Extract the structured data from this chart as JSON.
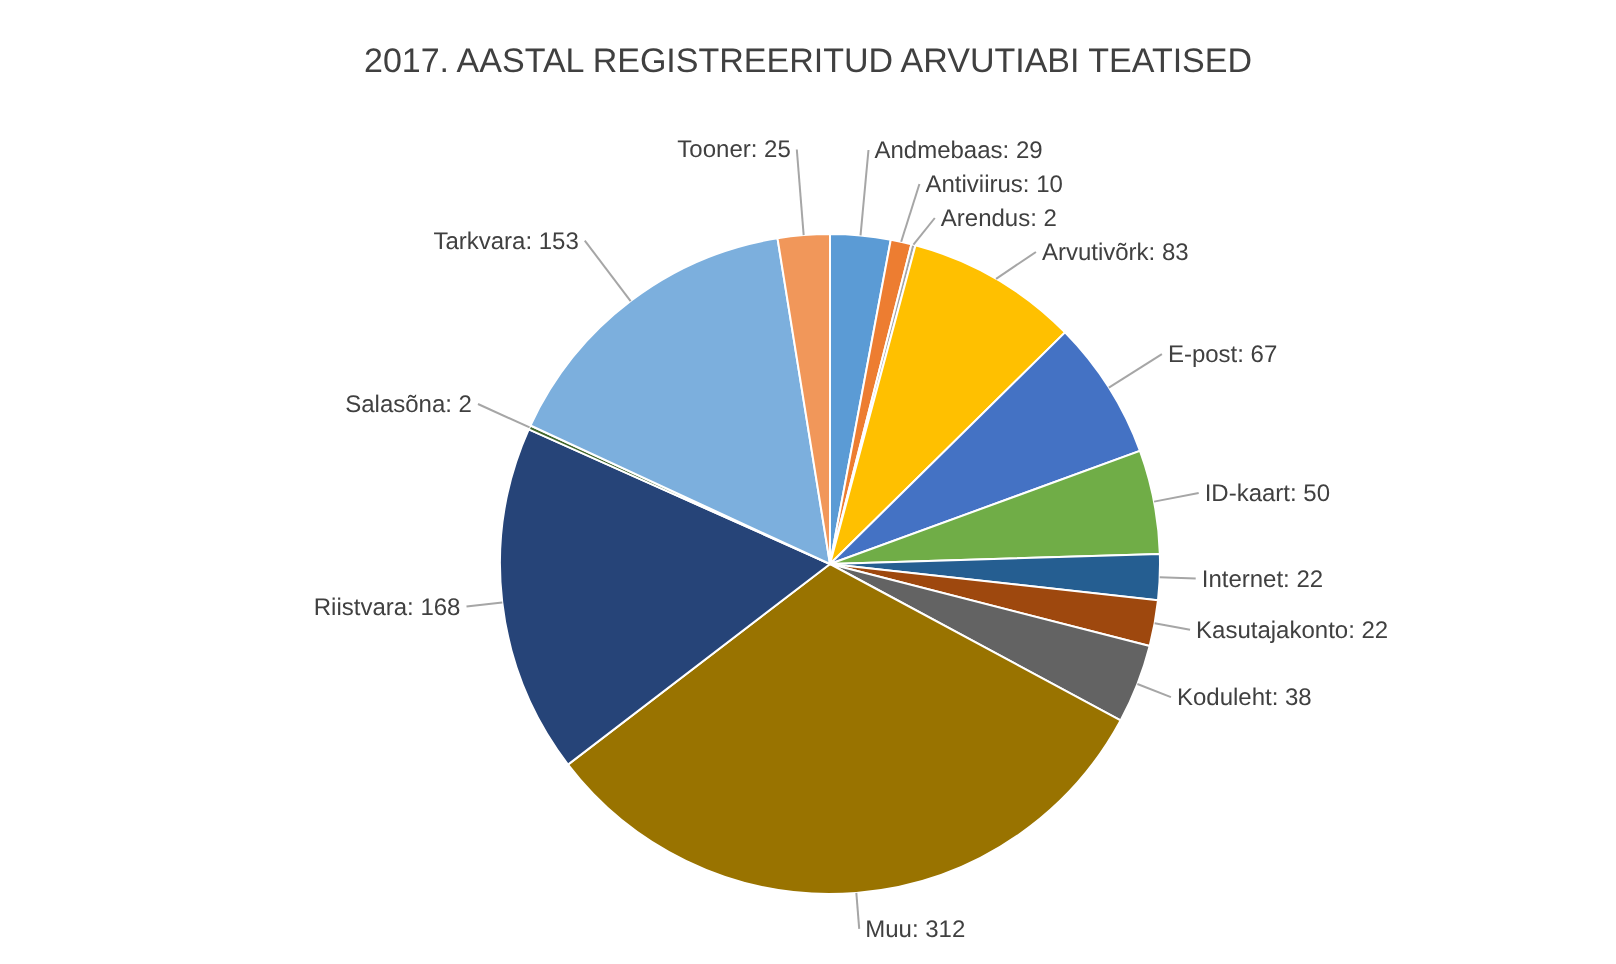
{
  "chart_data": {
    "type": "pie",
    "title": "2017. AASTAL REGISTREERITUD ARVUTIABI TEATISED",
    "categories": [
      "Andmebaas: 29",
      "Antiviirus: 10",
      "Arendus: 2",
      "Arvutivõrk: 83",
      "E-post: 67",
      "ID-kaart: 50",
      "Internet: 22",
      "Kasutajakonto: 22",
      "Koduleht: 38",
      "Muu: 312",
      "Riistvara: 168",
      "Salasõna: 2",
      "Tarkvara: 153",
      "Tooner: 25"
    ],
    "values": [
      29,
      10,
      2,
      83,
      67,
      50,
      22,
      22,
      38,
      312,
      168,
      2,
      153,
      25
    ],
    "colors": [
      "#5b9bd5",
      "#ed7d31",
      "#a5a5a5",
      "#ffc000",
      "#4472c4",
      "#70ad47",
      "#255e91",
      "#9e480e",
      "#636363",
      "#997300",
      "#264478",
      "#43682b",
      "#7cafdd",
      "#f1975a"
    ]
  }
}
